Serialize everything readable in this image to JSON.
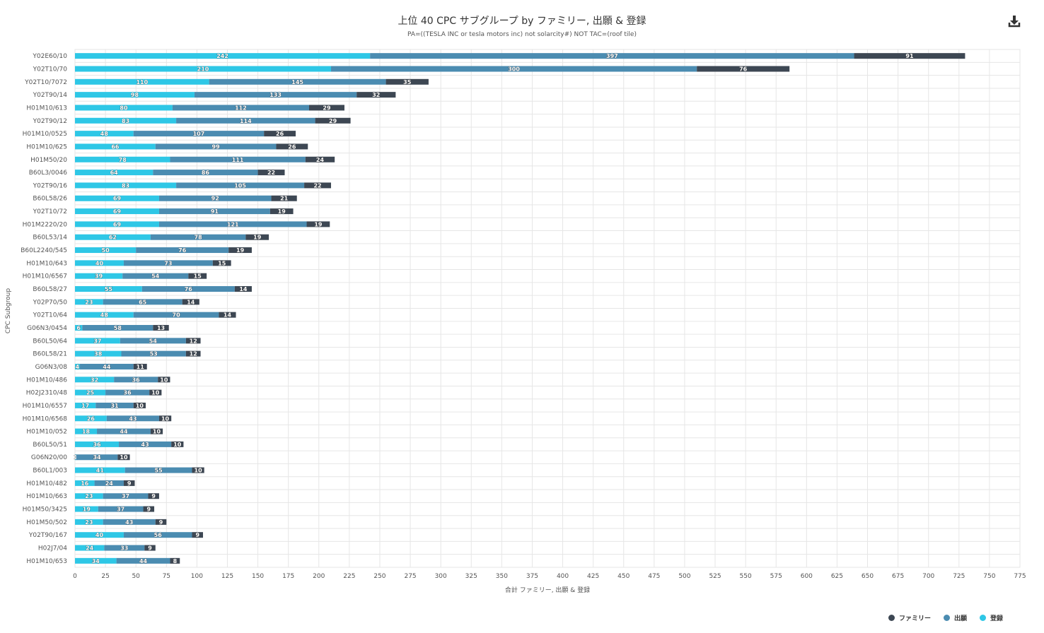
{
  "title": "上位 40 CPC サブグループ by ファミリー, 出願 & 登録",
  "subtitle": "PA=((TESLA INC or tesla motors inc) not solarcity#) NOT TAC=(roof tile)",
  "download_icon": "download-icon",
  "colors": {
    "registration": "#2ec7e6",
    "application": "#4b8cb1",
    "family": "#3d4753"
  },
  "legend": [
    {
      "label": "ファミリー",
      "color": "#3d4753"
    },
    {
      "label": "出願",
      "color": "#4b8cb1"
    },
    {
      "label": "登録",
      "color": "#2ec7e6"
    }
  ],
  "chart_data": {
    "type": "bar",
    "orientation": "horizontal",
    "stacked": true,
    "title": "上位 40 CPC サブグループ by ファミリー, 出願 & 登録",
    "subtitle": "PA=((TESLA INC or tesla motors inc) not solarcity#) NOT TAC=(roof tile)",
    "xlabel": "合計 ファミリー, 出願 & 登録",
    "ylabel": "CPC Subgroup",
    "xlim": [
      0,
      775
    ],
    "xticks": [
      0,
      25,
      50,
      75,
      100,
      125,
      150,
      175,
      200,
      225,
      250,
      275,
      300,
      325,
      350,
      375,
      400,
      425,
      450,
      475,
      500,
      525,
      550,
      575,
      600,
      625,
      650,
      675,
      700,
      725,
      750,
      775
    ],
    "grid": true,
    "legend_position": "bottom-right",
    "categories": [
      "Y02E60/10",
      "Y02T10/70",
      "Y02T10/7072",
      "Y02T90/14",
      "H01M10/613",
      "Y02T90/12",
      "H01M10/0525",
      "H01M10/625",
      "H01M50/20",
      "B60L3/0046",
      "Y02T90/16",
      "B60L58/26",
      "Y02T10/72",
      "H01M2220/20",
      "B60L53/14",
      "B60L2240/545",
      "H01M10/643",
      "H01M10/6567",
      "B60L58/27",
      "Y02P70/50",
      "Y02T10/64",
      "G06N3/0454",
      "B60L50/64",
      "B60L58/21",
      "G06N3/08",
      "H01M10/486",
      "H02J2310/48",
      "H01M10/6557",
      "H01M10/6568",
      "H01M10/052",
      "B60L50/51",
      "G06N20/00",
      "B60L1/003",
      "H01M10/482",
      "H01M10/663",
      "H01M50/3425",
      "H01M50/502",
      "Y02T90/167",
      "H02J7/04",
      "H01M10/653"
    ],
    "series": [
      {
        "name": "登録",
        "values": [
          242,
          210,
          110,
          98,
          80,
          83,
          48,
          66,
          78,
          64,
          83,
          69,
          69,
          69,
          62,
          50,
          40,
          39,
          55,
          23,
          48,
          6,
          37,
          38,
          4,
          32,
          25,
          17,
          26,
          18,
          36,
          1,
          41,
          16,
          23,
          19,
          23,
          40,
          24,
          34
        ]
      },
      {
        "name": "出願",
        "values": [
          397,
          300,
          145,
          133,
          112,
          114,
          107,
          99,
          111,
          86,
          105,
          92,
          91,
          121,
          78,
          76,
          73,
          54,
          76,
          65,
          70,
          58,
          54,
          53,
          44,
          36,
          36,
          31,
          43,
          44,
          43,
          34,
          55,
          24,
          37,
          37,
          43,
          56,
          33,
          44
        ]
      },
      {
        "name": "ファミリー",
        "values": [
          91,
          76,
          35,
          32,
          29,
          29,
          26,
          26,
          24,
          22,
          22,
          21,
          19,
          19,
          19,
          19,
          15,
          15,
          14,
          14,
          14,
          13,
          12,
          12,
          11,
          10,
          10,
          10,
          10,
          10,
          10,
          10,
          10,
          9,
          9,
          9,
          9,
          9,
          9,
          8
        ]
      }
    ]
  }
}
